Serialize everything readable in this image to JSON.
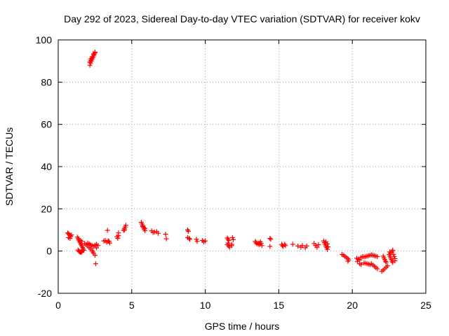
{
  "chart_data": {
    "type": "scatter",
    "title": "Day 292 of 2023, Sidereal Day-to-day VTEC variation (SDTVAR) for receiver kokv",
    "xlabel": "GPS time / hours",
    "ylabel": "SDTVAR / TECUs",
    "xlim": [
      0,
      25
    ],
    "ylim": [
      -20,
      100
    ],
    "xticks": [
      0,
      5,
      10,
      15,
      20,
      25
    ],
    "yticks": [
      -20,
      0,
      20,
      40,
      60,
      80,
      100
    ],
    "grid": true,
    "marker": "+",
    "color": "#ff0000",
    "series": [
      {
        "name": "SDTVAR",
        "points": [
          [
            0.65,
            8.6
          ],
          [
            0.7,
            8.2
          ],
          [
            0.75,
            7.8
          ],
          [
            0.8,
            7.4
          ],
          [
            0.85,
            7.0
          ],
          [
            0.7,
            6.4
          ],
          [
            0.8,
            6.0
          ],
          [
            0.9,
            7.6
          ],
          [
            1.3,
            6.6
          ],
          [
            1.35,
            5.9
          ],
          [
            1.4,
            5.2
          ],
          [
            1.45,
            4.5
          ],
          [
            1.5,
            3.8
          ],
          [
            1.55,
            3.1
          ],
          [
            1.6,
            2.4
          ],
          [
            1.65,
            1.7
          ],
          [
            1.7,
            1.0
          ],
          [
            1.75,
            0.4
          ],
          [
            1.35,
            0.5
          ],
          [
            1.4,
            0.0
          ],
          [
            1.45,
            -0.3
          ],
          [
            1.5,
            -0.5
          ],
          [
            1.55,
            -0.6
          ],
          [
            1.6,
            -0.3
          ],
          [
            1.65,
            0.2
          ],
          [
            1.5,
            5.0
          ],
          [
            1.6,
            4.6
          ],
          [
            1.8,
            3.6
          ],
          [
            1.9,
            3.0
          ],
          [
            2.0,
            2.4
          ],
          [
            2.1,
            1.7
          ],
          [
            2.2,
            1.0
          ],
          [
            2.3,
            0.3
          ],
          [
            2.35,
            -0.4
          ],
          [
            2.4,
            -1.0
          ],
          [
            2.5,
            -2.0
          ],
          [
            2.0,
            3.8
          ],
          [
            2.1,
            3.4
          ],
          [
            2.2,
            3.0
          ],
          [
            2.3,
            2.6
          ],
          [
            2.4,
            2.2
          ],
          [
            2.5,
            2.8
          ],
          [
            2.6,
            3.2
          ],
          [
            2.7,
            2.6
          ],
          [
            2.6,
            1.5
          ],
          [
            2.55,
            -6.0
          ],
          [
            2.15,
            88.0
          ],
          [
            2.2,
            89.0
          ],
          [
            2.25,
            90.0
          ],
          [
            2.3,
            90.8
          ],
          [
            2.35,
            91.6
          ],
          [
            2.4,
            92.4
          ],
          [
            2.45,
            93.1
          ],
          [
            2.5,
            93.8
          ],
          [
            2.15,
            89.5
          ],
          [
            2.2,
            90.4
          ],
          [
            2.25,
            91.2
          ],
          [
            2.3,
            92.0
          ],
          [
            2.4,
            93.4
          ],
          [
            2.5,
            94.2
          ],
          [
            3.1,
            4.8
          ],
          [
            3.2,
            5.0
          ],
          [
            3.3,
            4.2
          ],
          [
            3.4,
            4.8
          ],
          [
            3.35,
            9.8
          ],
          [
            3.5,
            3.8
          ],
          [
            3.45,
            4.6
          ],
          [
            4.0,
            6.8
          ],
          [
            4.05,
            6.0
          ],
          [
            4.1,
            7.4
          ],
          [
            4.1,
            8.6
          ],
          [
            4.45,
            9.8
          ],
          [
            4.5,
            10.6
          ],
          [
            4.55,
            11.4
          ],
          [
            4.6,
            12.2
          ],
          [
            4.5,
            10.0
          ],
          [
            5.65,
            13.6
          ],
          [
            5.7,
            12.8
          ],
          [
            5.75,
            12.0
          ],
          [
            5.8,
            11.2
          ],
          [
            5.85,
            10.4
          ],
          [
            5.9,
            9.6
          ],
          [
            5.75,
            11.6
          ],
          [
            5.9,
            10.8
          ],
          [
            6.35,
            9.6
          ],
          [
            6.45,
            8.8
          ],
          [
            6.55,
            9.0
          ],
          [
            6.7,
            9.2
          ],
          [
            6.8,
            8.4
          ],
          [
            7.3,
            8.0
          ],
          [
            7.35,
            5.8
          ],
          [
            8.8,
            10.0
          ],
          [
            8.85,
            9.4
          ],
          [
            8.8,
            6.4
          ],
          [
            8.9,
            6.0
          ],
          [
            8.95,
            5.6
          ],
          [
            9.4,
            5.6
          ],
          [
            9.45,
            4.6
          ],
          [
            9.8,
            5.0
          ],
          [
            9.9,
            4.4
          ],
          [
            10.0,
            4.8
          ],
          [
            11.5,
            6.2
          ],
          [
            11.55,
            5.6
          ],
          [
            11.6,
            5.0
          ],
          [
            11.55,
            3.8
          ],
          [
            11.5,
            3.0
          ],
          [
            11.6,
            2.4
          ],
          [
            11.65,
            1.8
          ],
          [
            11.8,
            3.2
          ],
          [
            11.85,
            6.4
          ],
          [
            11.9,
            5.4
          ],
          [
            11.8,
            2.6
          ],
          [
            13.4,
            4.6
          ],
          [
            13.45,
            4.0
          ],
          [
            13.5,
            3.5
          ],
          [
            13.6,
            3.2
          ],
          [
            13.65,
            3.8
          ],
          [
            13.7,
            3.0
          ],
          [
            13.75,
            4.4
          ],
          [
            13.8,
            3.6
          ],
          [
            13.85,
            2.6
          ],
          [
            14.4,
            6.0
          ],
          [
            14.45,
            5.6
          ],
          [
            14.4,
            2.2
          ],
          [
            15.2,
            3.2
          ],
          [
            15.25,
            2.6
          ],
          [
            15.3,
            2.2
          ],
          [
            15.4,
            3.2
          ],
          [
            15.45,
            2.6
          ],
          [
            15.95,
            3.2
          ],
          [
            16.3,
            2.4
          ],
          [
            16.5,
            1.8
          ],
          [
            16.6,
            2.6
          ],
          [
            16.8,
            1.6
          ],
          [
            16.9,
            2.4
          ],
          [
            17.4,
            3.6
          ],
          [
            17.5,
            2.6
          ],
          [
            17.6,
            1.8
          ],
          [
            17.7,
            3.0
          ],
          [
            18.05,
            4.8
          ],
          [
            18.1,
            4.0
          ],
          [
            18.15,
            3.2
          ],
          [
            18.2,
            2.4
          ],
          [
            18.25,
            1.6
          ],
          [
            18.3,
            0.8
          ],
          [
            18.2,
            4.4
          ],
          [
            18.3,
            3.4
          ],
          [
            18.35,
            2.0
          ],
          [
            19.3,
            -1.6
          ],
          [
            19.4,
            -2.0
          ],
          [
            19.5,
            -2.6
          ],
          [
            19.6,
            -3.0
          ],
          [
            19.7,
            -3.6
          ],
          [
            19.75,
            -4.2
          ],
          [
            19.7,
            -4.8
          ],
          [
            20.3,
            -3.4
          ],
          [
            20.4,
            -3.8
          ],
          [
            20.5,
            -4.2
          ],
          [
            20.6,
            -3.0
          ],
          [
            20.7,
            -2.6
          ],
          [
            20.5,
            -6.0
          ],
          [
            20.6,
            -6.4
          ],
          [
            20.35,
            -5.0
          ],
          [
            20.8,
            -5.6
          ],
          [
            20.9,
            -5.8
          ],
          [
            21.0,
            -6.0
          ],
          [
            21.1,
            -6.2
          ],
          [
            21.2,
            -6.4
          ],
          [
            20.8,
            -2.8
          ],
          [
            20.9,
            -2.6
          ],
          [
            21.0,
            -2.4
          ],
          [
            21.1,
            -2.2
          ],
          [
            21.2,
            -2.0
          ],
          [
            21.3,
            -1.8
          ],
          [
            21.4,
            -2.0
          ],
          [
            21.5,
            -2.2
          ],
          [
            21.6,
            -2.4
          ],
          [
            21.7,
            -2.6
          ],
          [
            21.3,
            -6.0
          ],
          [
            21.4,
            -6.6
          ],
          [
            21.5,
            -7.2
          ],
          [
            21.6,
            -7.8
          ],
          [
            21.7,
            -8.4
          ],
          [
            22.0,
            -9.6
          ],
          [
            22.1,
            -9.0
          ],
          [
            22.2,
            -8.4
          ],
          [
            22.3,
            -7.6
          ],
          [
            22.4,
            -7.0
          ],
          [
            22.1,
            -2.4
          ],
          [
            22.15,
            -3.2
          ],
          [
            22.2,
            -4.0
          ],
          [
            22.25,
            -4.8
          ],
          [
            22.3,
            -5.2
          ],
          [
            22.5,
            -1.6
          ],
          [
            22.55,
            -2.4
          ],
          [
            22.6,
            -3.2
          ],
          [
            22.65,
            -4.0
          ],
          [
            22.7,
            -4.8
          ],
          [
            22.75,
            -5.4
          ],
          [
            22.55,
            -0.4
          ],
          [
            22.6,
            -1.0
          ],
          [
            22.7,
            -0.2
          ],
          [
            22.75,
            0.4
          ],
          [
            22.8,
            -1.6
          ],
          [
            22.85,
            -2.6
          ],
          [
            22.9,
            -3.6
          ],
          [
            22.9,
            -4.6
          ]
        ]
      }
    ]
  }
}
